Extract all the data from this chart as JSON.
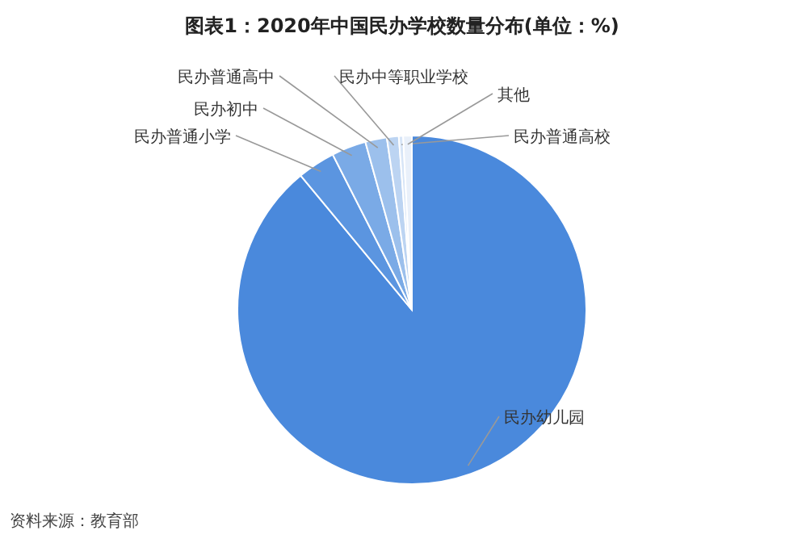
{
  "chart_data": {
    "type": "pie",
    "title": "图表1：2020年中国民办学校数量分布(单位：%)",
    "categories": [
      "民办幼儿园",
      "民办普通小学",
      "民办初中",
      "民办普通高中",
      "民办中等职业学校",
      "民办普通高校",
      "其他"
    ],
    "values": [
      89,
      3.5,
      3.2,
      2,
      1.1,
      0.4,
      0.8
    ],
    "colors": [
      "#4a89dc",
      "#5b95e0",
      "#7aaae6",
      "#9cc0ec",
      "#bcd4f2",
      "#d7e5f7",
      "#e9f0fa"
    ],
    "annotations": [
      "资料来源：教育部"
    ]
  }
}
